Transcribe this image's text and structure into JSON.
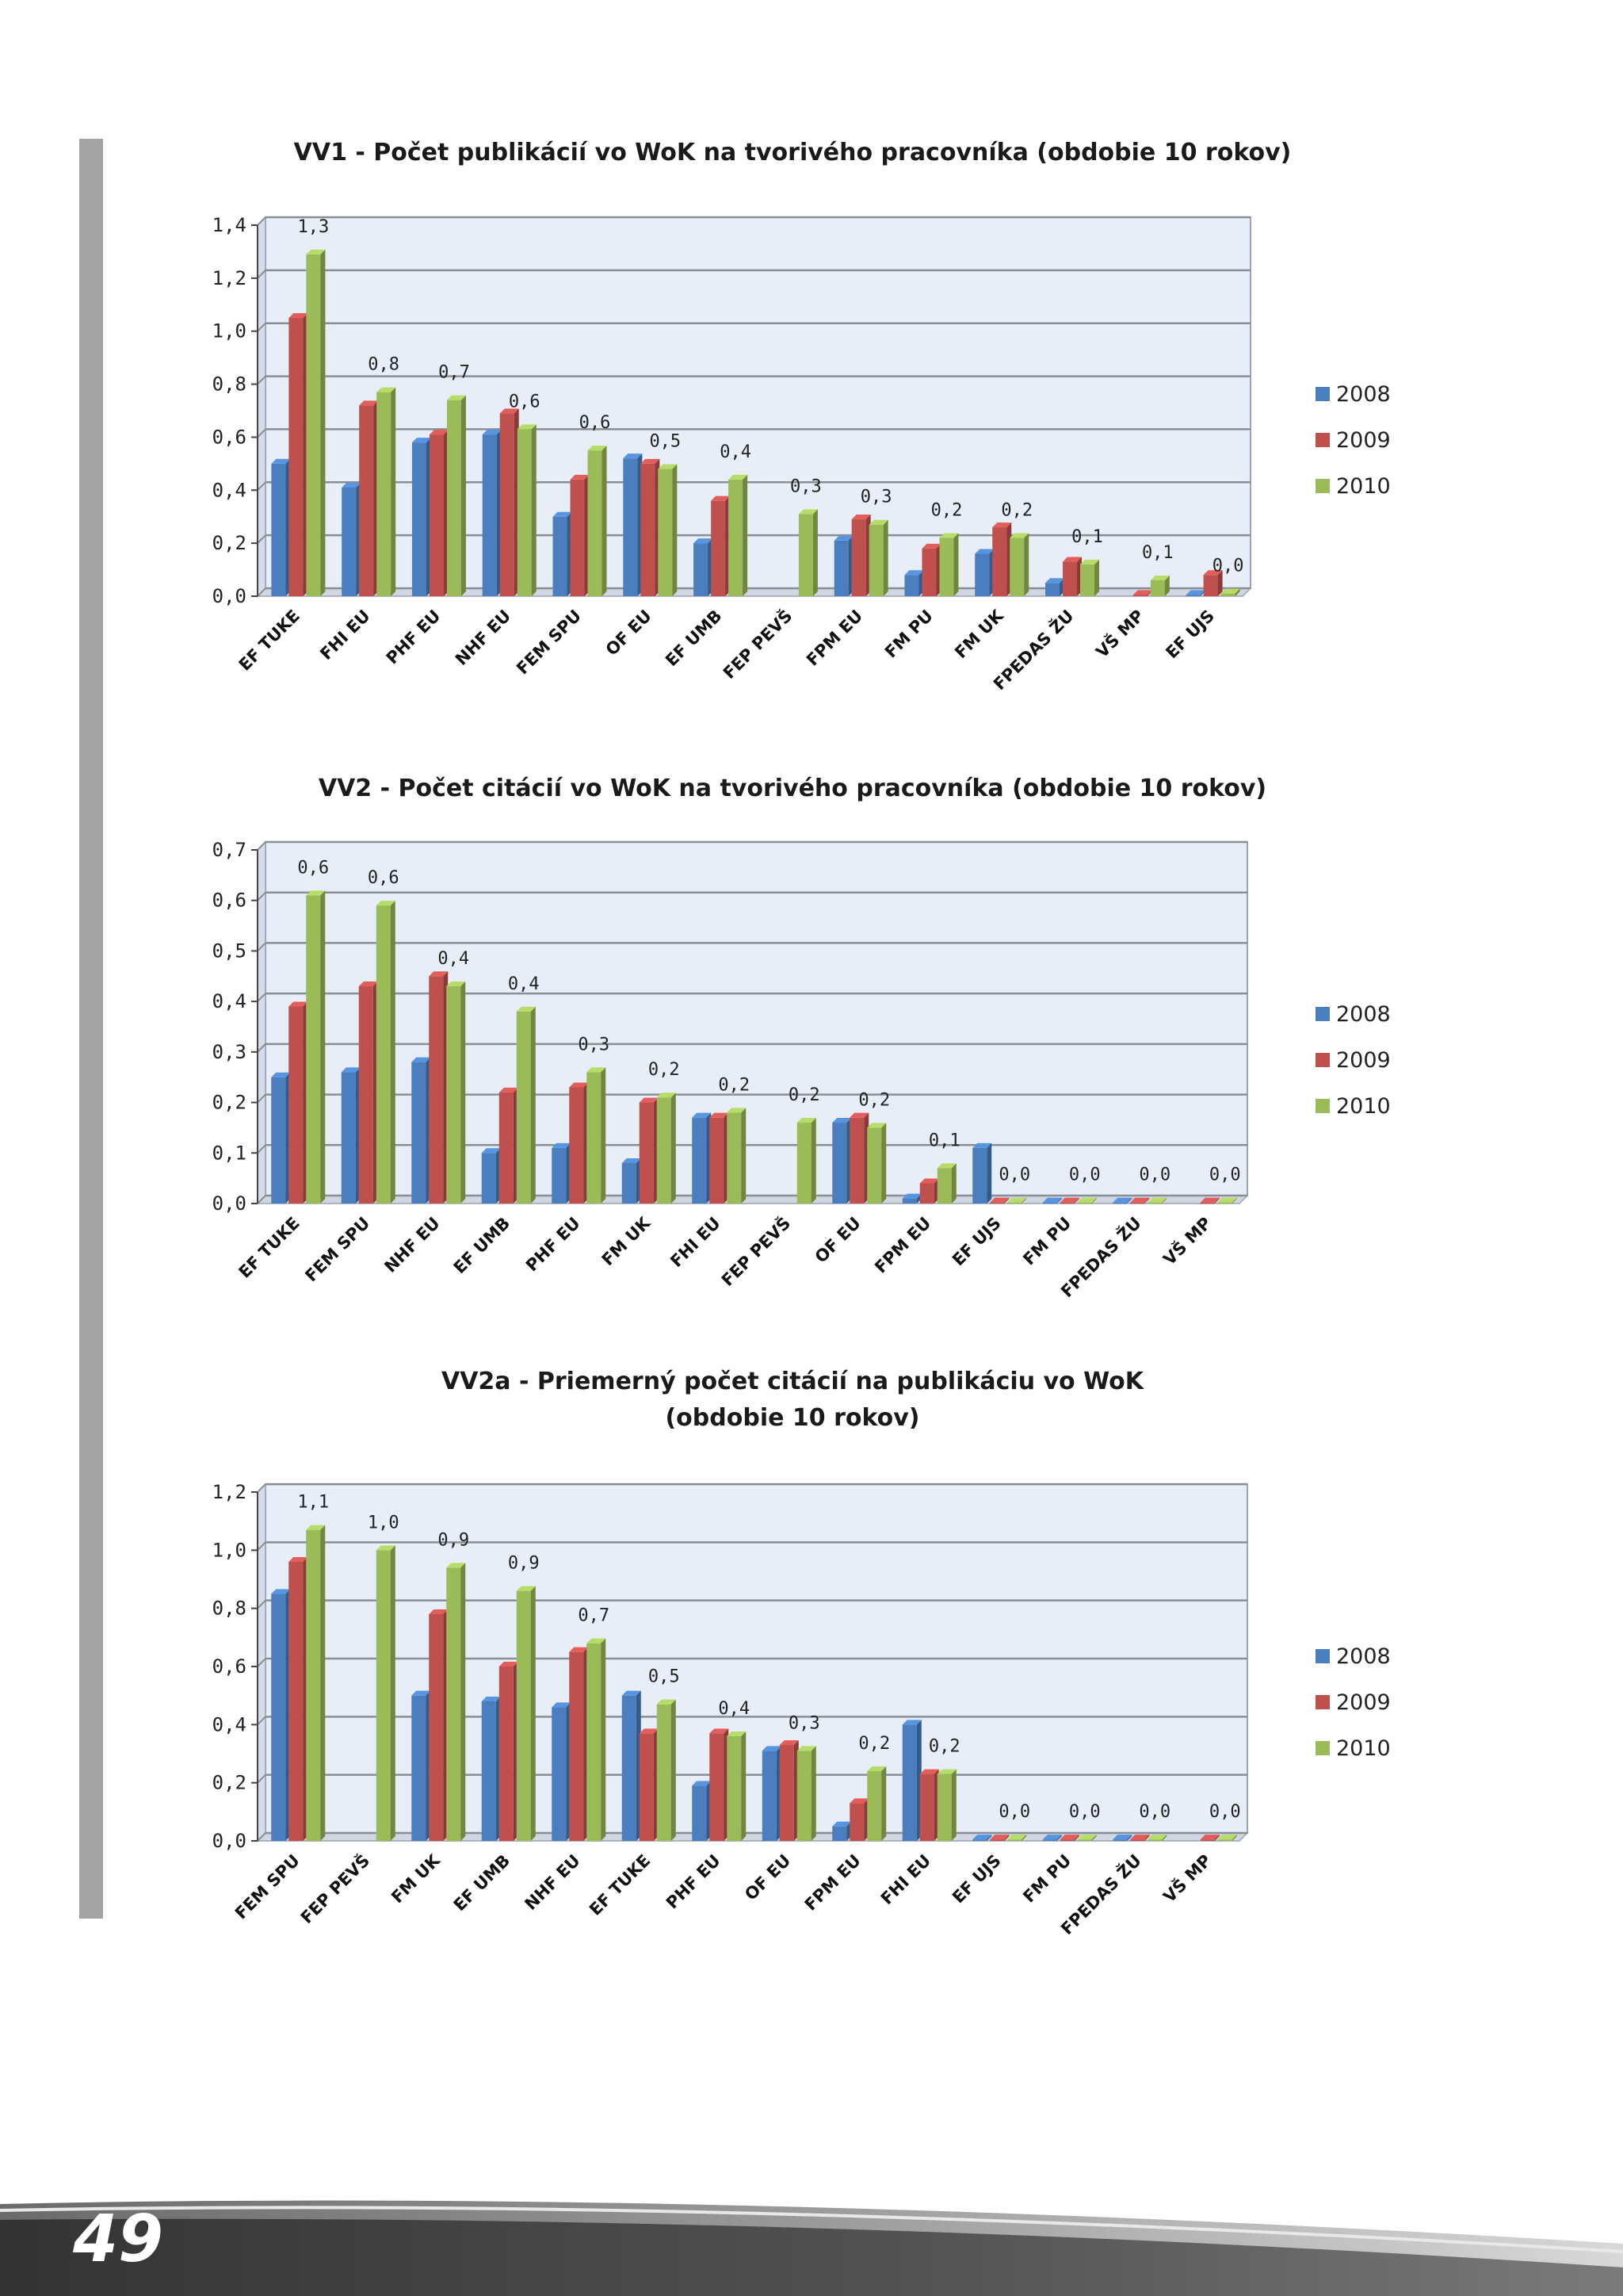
{
  "page": {
    "number": "49"
  },
  "legend": [
    "2008",
    "2009",
    "2010"
  ],
  "colors": {
    "2008": "#4a7ebf",
    "2009": "#c0504d",
    "2010": "#9bbb59"
  },
  "chart_data": [
    {
      "id": "chart-1",
      "type": "bar",
      "title": "VV1 - Počet publikácií vo WoK na tvorivého pracovníka (obdobie 10 rokov)",
      "xlabel": "",
      "ylabel": "",
      "ylim": [
        0,
        1.4
      ],
      "ystep": 0.2,
      "yticks": [
        "0,0",
        "0,2",
        "0,4",
        "0,6",
        "0,8",
        "1,0",
        "1,2",
        "1,4"
      ],
      "categories": [
        "EF TUKE",
        "FHI EU",
        "PHF EU",
        "NHF EU",
        "FEM SPU",
        "OF EU",
        "EF UMB",
        "FEP PEVŠ",
        "FPM EU",
        "FM PU",
        "FM UK",
        "FPEDAS ŽU",
        "VŠ MP",
        "EF UJS"
      ],
      "series": [
        {
          "name": "2008",
          "values": [
            0.5,
            0.41,
            0.58,
            0.61,
            0.3,
            0.52,
            0.2,
            0.0,
            0.21,
            0.08,
            0.16,
            0.05,
            0.0,
            0.005
          ]
        },
        {
          "name": "2009",
          "values": [
            1.05,
            0.72,
            0.61,
            0.69,
            0.44,
            0.5,
            0.36,
            0.0,
            0.29,
            0.18,
            0.26,
            0.13,
            0.005,
            0.08
          ]
        },
        {
          "name": "2010",
          "values": [
            1.29,
            0.77,
            0.74,
            0.63,
            0.55,
            0.48,
            0.44,
            0.31,
            0.27,
            0.22,
            0.22,
            0.12,
            0.06,
            0.01
          ]
        }
      ],
      "data_labels": [
        "1,3",
        "0,8",
        "0,7",
        "0,6",
        "0,6",
        "0,5",
        "0,4",
        "0,3",
        "0,3",
        "0,2",
        "0,2",
        "0,1",
        "0,1",
        "0,0"
      ]
    },
    {
      "id": "chart-2",
      "type": "bar",
      "title": "VV2 - Počet citácií vo WoK na tvorivého pracovníka (obdobie 10 rokov)",
      "xlabel": "",
      "ylabel": "",
      "ylim": [
        0,
        0.7
      ],
      "ystep": 0.1,
      "yticks": [
        "0,0",
        "0,1",
        "0,2",
        "0,3",
        "0,4",
        "0,5",
        "0,6",
        "0,7"
      ],
      "categories": [
        "EF TUKE",
        "FEM SPU",
        "NHF EU",
        "EF UMB",
        "PHF EU",
        "FM UK",
        "FHI EU",
        "FEP PEVŠ",
        "OF EU",
        "FPM EU",
        "EF UJS",
        "FM PU",
        "FPEDAS ŽU",
        "VŠ MP"
      ],
      "series": [
        {
          "name": "2008",
          "values": [
            0.25,
            0.26,
            0.28,
            0.1,
            0.11,
            0.08,
            0.17,
            0.0,
            0.16,
            0.01,
            0.11,
            0.002,
            0.002,
            0.0
          ]
        },
        {
          "name": "2009",
          "values": [
            0.39,
            0.43,
            0.45,
            0.22,
            0.23,
            0.2,
            0.17,
            0.0,
            0.17,
            0.04,
            0.002,
            0.002,
            0.002,
            0.002
          ]
        },
        {
          "name": "2010",
          "values": [
            0.61,
            0.59,
            0.43,
            0.38,
            0.26,
            0.21,
            0.18,
            0.16,
            0.15,
            0.07,
            0.002,
            0.002,
            0.002,
            0.002
          ]
        }
      ],
      "data_labels": [
        "0,6",
        "0,6",
        "0,4",
        "0,4",
        "0,3",
        "0,2",
        "0,2",
        "0,2",
        "0,2",
        "0,1",
        "0,0",
        "0,0",
        "0,0",
        "0,0"
      ]
    },
    {
      "id": "chart-3",
      "type": "bar",
      "title": "VV2a - Priemerný počet citácií na publikáciu vo WoK",
      "subtitle": "(obdobie 10 rokov)",
      "xlabel": "",
      "ylabel": "",
      "ylim": [
        0,
        1.2
      ],
      "ystep": 0.2,
      "yticks": [
        "0,0",
        "0,2",
        "0,4",
        "0,6",
        "0,8",
        "1,0",
        "1,2"
      ],
      "categories": [
        "FEM SPU",
        "FEP PEVŠ",
        "FM UK",
        "EF UMB",
        "NHF EU",
        "EF TUKE",
        "PHF EU",
        "OF EU",
        "FPM EU",
        "FHI EU",
        "EF UJS",
        "FM PU",
        "FPEDAS ŽU",
        "VŠ MP"
      ],
      "series": [
        {
          "name": "2008",
          "values": [
            0.85,
            0.0,
            0.5,
            0.48,
            0.46,
            0.5,
            0.19,
            0.31,
            0.05,
            0.4,
            0.005,
            0.005,
            0.005,
            0.0
          ]
        },
        {
          "name": "2009",
          "values": [
            0.96,
            0.0,
            0.78,
            0.6,
            0.65,
            0.37,
            0.37,
            0.33,
            0.13,
            0.23,
            0.005,
            0.005,
            0.005,
            0.005
          ]
        },
        {
          "name": "2010",
          "values": [
            1.07,
            1.0,
            0.94,
            0.86,
            0.68,
            0.47,
            0.36,
            0.31,
            0.24,
            0.23,
            0.005,
            0.005,
            0.005,
            0.005
          ]
        }
      ],
      "data_labels": [
        "1,1",
        "1,0",
        "0,9",
        "0,9",
        "0,7",
        "0,5",
        "0,4",
        "0,3",
        "0,2",
        "0,2",
        "0,0",
        "0,0",
        "0,0",
        "0,0"
      ]
    }
  ]
}
